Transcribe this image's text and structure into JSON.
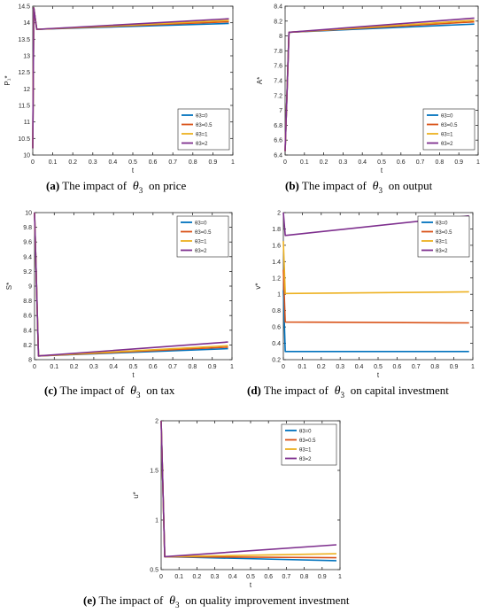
{
  "chart_data": [
    {
      "id": "a",
      "type": "line",
      "ylabel": "P₁*",
      "xlabel": "t",
      "xlim": [
        0,
        1
      ],
      "ylim": [
        10,
        14.5
      ],
      "xticks": [
        "0",
        "0.1",
        "0.2",
        "0.3",
        "0.4",
        "0.5",
        "0.6",
        "0.7",
        "0.8",
        "0.9",
        "1"
      ],
      "yticks": [
        "10",
        "10.5",
        "11",
        "11.5",
        "12",
        "12.5",
        "13",
        "13.5",
        "14",
        "14.5"
      ],
      "legend_position": "bottom-right",
      "x": [
        0,
        0.005,
        0.02,
        0.98
      ],
      "series": [
        {
          "name": "θ3=0",
          "color": "#0072BD",
          "values": [
            10.2,
            14.45,
            13.8,
            13.98
          ]
        },
        {
          "name": "θ3=0.5",
          "color": "#D95319",
          "values": [
            10.2,
            14.45,
            13.8,
            14.03
          ]
        },
        {
          "name": "θ3=1",
          "color": "#EDB120",
          "values": [
            10.2,
            14.45,
            13.8,
            14.07
          ]
        },
        {
          "name": "θ3=2",
          "color": "#7E2F8E",
          "values": [
            10.2,
            14.45,
            13.8,
            14.12
          ]
        }
      ],
      "caption_label": "(a)",
      "caption_prefix": "The impact of",
      "caption_suffix": "on price"
    },
    {
      "id": "b",
      "type": "line",
      "ylabel": "A*",
      "xlabel": "t",
      "xlim": [
        0,
        1
      ],
      "ylim": [
        6.4,
        8.4
      ],
      "xticks": [
        "0",
        "0.1",
        "0.2",
        "0.3",
        "0.4",
        "0.5",
        "0.6",
        "0.7",
        "0.8",
        "0.9",
        "1"
      ],
      "yticks": [
        "6.4",
        "6.6",
        "6.8",
        "7",
        "7.2",
        "7.4",
        "7.6",
        "7.8",
        "8",
        "8.2",
        "8.4"
      ],
      "legend_position": "bottom-right",
      "x": [
        0,
        0.02,
        0.98
      ],
      "series": [
        {
          "name": "θ3=0",
          "color": "#0072BD",
          "values": [
            6.45,
            8.05,
            8.16
          ]
        },
        {
          "name": "θ3=0.5",
          "color": "#D95319",
          "values": [
            6.45,
            8.05,
            8.19
          ]
        },
        {
          "name": "θ3=1",
          "color": "#EDB120",
          "values": [
            6.45,
            8.05,
            8.21
          ]
        },
        {
          "name": "θ3=2",
          "color": "#7E2F8E",
          "values": [
            6.45,
            8.05,
            8.24
          ]
        }
      ],
      "caption_label": "(b)",
      "caption_prefix": "The impact of",
      "caption_suffix": "on output"
    },
    {
      "id": "c",
      "type": "line",
      "ylabel": "S*",
      "xlabel": "t",
      "xlim": [
        0,
        1
      ],
      "ylim": [
        8,
        10
      ],
      "xticks": [
        "0",
        "0.1",
        "0.2",
        "0.3",
        "0.4",
        "0.5",
        "0.6",
        "0.7",
        "0.8",
        "0.9",
        "1"
      ],
      "yticks": [
        "8",
        "8.2",
        "8.4",
        "8.6",
        "8.8",
        "9",
        "9.2",
        "9.4",
        "9.6",
        "9.8",
        "10"
      ],
      "legend_position": "top-right",
      "x": [
        0,
        0.02,
        0.98
      ],
      "series": [
        {
          "name": "θ3=0",
          "color": "#0072BD",
          "values": [
            10,
            8.05,
            8.15
          ]
        },
        {
          "name": "θ3=0.5",
          "color": "#D95319",
          "values": [
            10,
            8.05,
            8.17
          ]
        },
        {
          "name": "θ3=1",
          "color": "#EDB120",
          "values": [
            10,
            8.05,
            8.19
          ]
        },
        {
          "name": "θ3=2",
          "color": "#7E2F8E",
          "values": [
            10,
            8.05,
            8.24
          ]
        }
      ],
      "caption_label": "(c)",
      "caption_prefix": "The impact of",
      "caption_suffix": "on tax"
    },
    {
      "id": "d",
      "type": "line",
      "ylabel": "v*",
      "xlabel": "t",
      "xlim": [
        0,
        1
      ],
      "ylim": [
        0.2,
        2
      ],
      "xticks": [
        "0",
        "0.1",
        "0.2",
        "0.3",
        "0.4",
        "0.5",
        "0.6",
        "0.7",
        "0.8",
        "0.9",
        "1"
      ],
      "yticks": [
        "0.2",
        "0.4",
        "0.6",
        "0.8",
        "1",
        "1.2",
        "1.4",
        "1.6",
        "1.8",
        "2"
      ],
      "legend_position": "top-right",
      "x": [
        0,
        0.01,
        0.98
      ],
      "series": [
        {
          "name": "θ3=0",
          "color": "#0072BD",
          "values": [
            1.05,
            0.3,
            0.3
          ]
        },
        {
          "name": "θ3=0.5",
          "color": "#D95319",
          "values": [
            1.3,
            0.66,
            0.65
          ]
        },
        {
          "name": "θ3=1",
          "color": "#EDB120",
          "values": [
            1.65,
            1.01,
            1.03
          ]
        },
        {
          "name": "θ3=2",
          "color": "#7E2F8E",
          "values": [
            2.0,
            1.72,
            1.96
          ]
        }
      ],
      "caption_label": "(d)",
      "caption_prefix": "The impact of",
      "caption_suffix": "on capital investment"
    },
    {
      "id": "e",
      "type": "line",
      "ylabel": "u*",
      "xlabel": "t",
      "xlim": [
        0,
        1
      ],
      "ylim": [
        0.5,
        2
      ],
      "xticks": [
        "0",
        "0.1",
        "0.2",
        "0.3",
        "0.4",
        "0.5",
        "0.6",
        "0.7",
        "0.8",
        "0.9",
        "1"
      ],
      "yticks": [
        "0.5",
        "1",
        "1.5",
        "2"
      ],
      "legend_position": "top-right",
      "x": [
        0,
        0.02,
        0.98
      ],
      "series": [
        {
          "name": "θ3=0",
          "color": "#0072BD",
          "values": [
            2.0,
            0.63,
            0.59
          ]
        },
        {
          "name": "θ3=0.5",
          "color": "#D95319",
          "values": [
            2.0,
            0.63,
            0.62
          ]
        },
        {
          "name": "θ3=1",
          "color": "#EDB120",
          "values": [
            2.0,
            0.63,
            0.66
          ]
        },
        {
          "name": "θ3=2",
          "color": "#7E2F8E",
          "values": [
            2.0,
            0.63,
            0.75
          ]
        }
      ],
      "caption_label": "(e)",
      "caption_prefix": "The impact of",
      "caption_suffix": "on quality improvement investment"
    }
  ],
  "theta_symbol": "θ",
  "theta_sub": "3"
}
